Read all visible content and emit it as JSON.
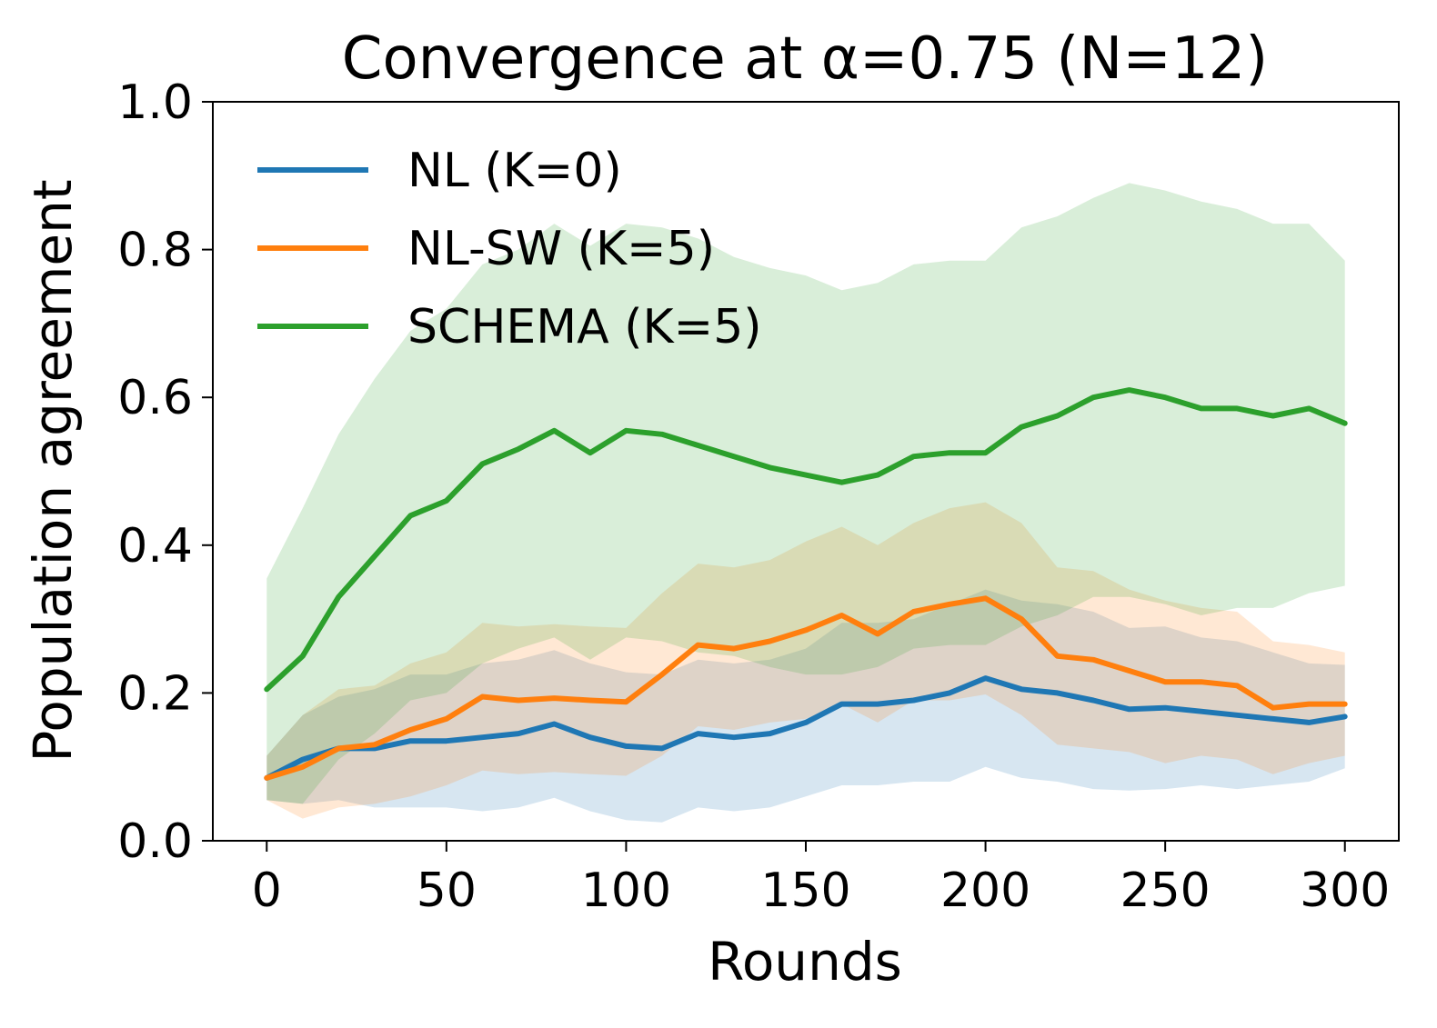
{
  "chart_data": {
    "type": "line",
    "title": "Convergence at α=0.75 (N=12)",
    "xlabel": "Rounds",
    "ylabel": "Population agreement",
    "xlim": [
      -15,
      315
    ],
    "ylim": [
      0.0,
      1.0
    ],
    "xticks": [
      0,
      50,
      100,
      150,
      200,
      250,
      300
    ],
    "yticks": [
      0.0,
      0.2,
      0.4,
      0.6,
      0.8,
      1.0
    ],
    "xtick_labels": [
      "0",
      "50",
      "100",
      "150",
      "200",
      "250",
      "300"
    ],
    "ytick_labels": [
      "0.0",
      "0.2",
      "0.4",
      "0.6",
      "0.8",
      "1.0"
    ],
    "grid": false,
    "legend_position": "top-left",
    "series": [
      {
        "name": "NL (K=0)",
        "color": "#1f77b4",
        "x": [
          0,
          10,
          20,
          30,
          40,
          50,
          60,
          70,
          80,
          90,
          100,
          110,
          120,
          130,
          140,
          150,
          160,
          170,
          180,
          190,
          200,
          210,
          220,
          230,
          240,
          250,
          260,
          270,
          280,
          290,
          300
        ],
        "y": [
          0.085,
          0.11,
          0.125,
          0.125,
          0.135,
          0.135,
          0.14,
          0.145,
          0.158,
          0.14,
          0.128,
          0.125,
          0.145,
          0.14,
          0.145,
          0.16,
          0.185,
          0.185,
          0.19,
          0.2,
          0.22,
          0.205,
          0.2,
          0.19,
          0.178,
          0.18,
          0.175,
          0.17,
          0.165,
          0.16,
          0.168
        ],
        "band_half_width": [
          0.03,
          0.06,
          0.07,
          0.08,
          0.09,
          0.09,
          0.1,
          0.1,
          0.1,
          0.1,
          0.1,
          0.1,
          0.1,
          0.1,
          0.1,
          0.1,
          0.11,
          0.11,
          0.11,
          0.12,
          0.12,
          0.12,
          0.12,
          0.12,
          0.11,
          0.11,
          0.1,
          0.1,
          0.09,
          0.08,
          0.07
        ]
      },
      {
        "name": "NL-SW (K=5)",
        "color": "#ff7f0e",
        "x": [
          0,
          10,
          20,
          30,
          40,
          50,
          60,
          70,
          80,
          90,
          100,
          110,
          120,
          130,
          140,
          150,
          160,
          170,
          180,
          190,
          200,
          210,
          220,
          230,
          240,
          250,
          260,
          270,
          280,
          290,
          300
        ],
        "y": [
          0.085,
          0.1,
          0.125,
          0.13,
          0.15,
          0.165,
          0.195,
          0.19,
          0.193,
          0.19,
          0.188,
          0.225,
          0.265,
          0.26,
          0.27,
          0.285,
          0.305,
          0.28,
          0.31,
          0.32,
          0.328,
          0.3,
          0.25,
          0.245,
          0.23,
          0.215,
          0.215,
          0.21,
          0.18,
          0.185,
          0.185
        ],
        "band_half_width": [
          0.03,
          0.07,
          0.08,
          0.08,
          0.09,
          0.09,
          0.1,
          0.1,
          0.1,
          0.1,
          0.1,
          0.11,
          0.11,
          0.11,
          0.11,
          0.12,
          0.12,
          0.12,
          0.12,
          0.13,
          0.13,
          0.13,
          0.12,
          0.12,
          0.11,
          0.11,
          0.1,
          0.1,
          0.09,
          0.08,
          0.07
        ]
      },
      {
        "name": "SCHEMA (K=5)",
        "color": "#2ca02c",
        "x": [
          0,
          10,
          20,
          30,
          40,
          50,
          60,
          70,
          80,
          90,
          100,
          110,
          120,
          130,
          140,
          150,
          160,
          170,
          180,
          190,
          200,
          210,
          220,
          230,
          240,
          250,
          260,
          270,
          280,
          290,
          300
        ],
        "y": [
          0.205,
          0.25,
          0.33,
          0.385,
          0.44,
          0.46,
          0.51,
          0.53,
          0.555,
          0.525,
          0.555,
          0.55,
          0.535,
          0.52,
          0.505,
          0.495,
          0.485,
          0.495,
          0.52,
          0.525,
          0.525,
          0.56,
          0.575,
          0.6,
          0.61,
          0.6,
          0.585,
          0.585,
          0.575,
          0.585,
          0.565
        ],
        "band_half_width": [
          0.15,
          0.2,
          0.22,
          0.24,
          0.25,
          0.26,
          0.27,
          0.27,
          0.28,
          0.28,
          0.28,
          0.28,
          0.28,
          0.27,
          0.27,
          0.27,
          0.26,
          0.26,
          0.26,
          0.26,
          0.26,
          0.27,
          0.27,
          0.27,
          0.28,
          0.28,
          0.28,
          0.27,
          0.26,
          0.25,
          0.22
        ]
      }
    ]
  }
}
